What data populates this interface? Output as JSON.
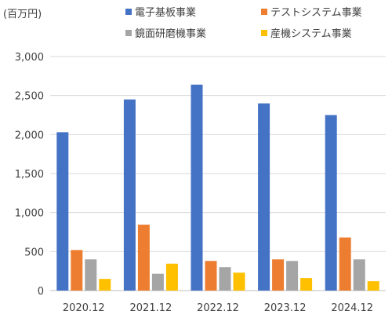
{
  "chart_data": {
    "type": "bar",
    "unit_label": "(百万円)",
    "categories": [
      "2020.12",
      "2021.12",
      "2022.12",
      "2023.12",
      "2024.12"
    ],
    "series": [
      {
        "name": "電子基板事業",
        "color": "#4472C4",
        "values": [
          2030,
          2450,
          2640,
          2400,
          2250
        ]
      },
      {
        "name": "テストシステム事業",
        "color": "#ED7D31",
        "values": [
          520,
          845,
          380,
          400,
          680
        ]
      },
      {
        "name": "鏡面研磨機事業",
        "color": "#A5A5A5",
        "values": [
          400,
          215,
          300,
          380,
          400
        ]
      },
      {
        "name": "産機システム事業",
        "color": "#FFC000",
        "values": [
          150,
          345,
          230,
          160,
          120
        ]
      }
    ],
    "y_ticks": [
      "0",
      "500",
      "1,000",
      "1,500",
      "2,000",
      "2,500",
      "3,000"
    ],
    "ylim": [
      0,
      3000
    ],
    "grid": true,
    "legend_position": "top"
  }
}
